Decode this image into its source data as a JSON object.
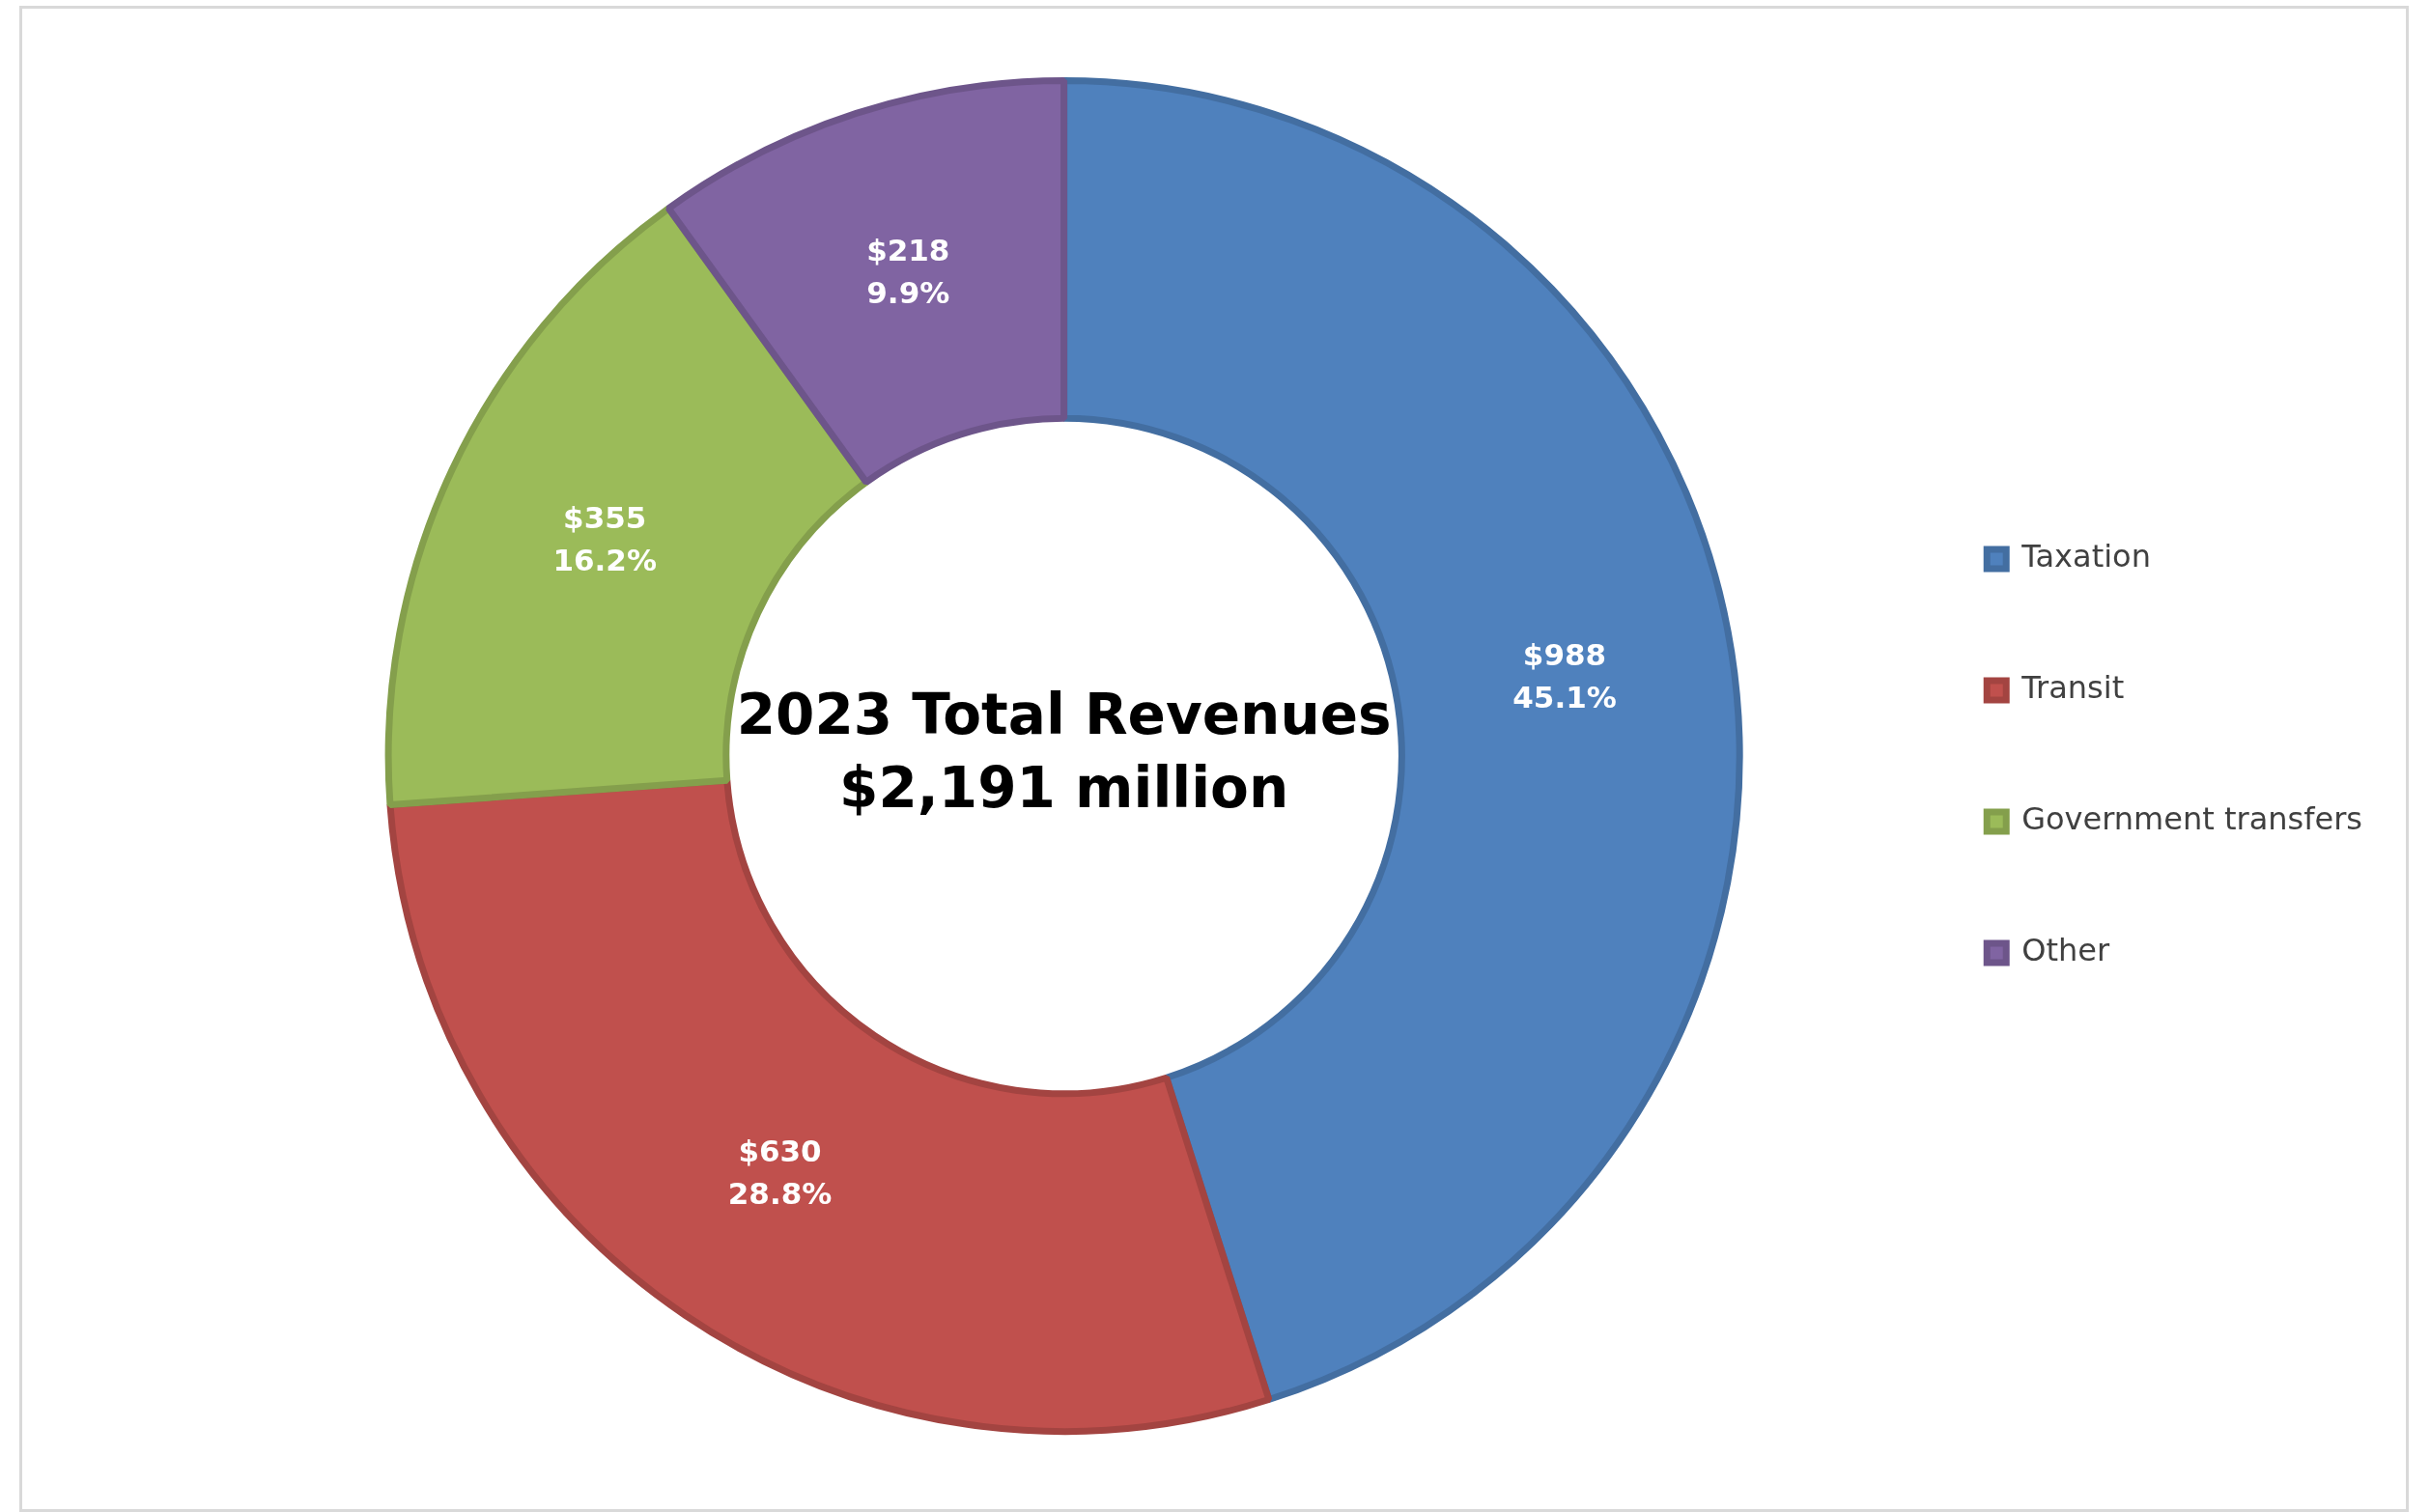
{
  "chart_data": {
    "type": "donut",
    "title": "2023 Total Revenues",
    "subtitle": "$2,191 million",
    "categories": [
      "Taxation",
      "Transit",
      "Government transfers",
      "Other"
    ],
    "values": [
      988,
      630,
      355,
      218
    ],
    "colors": [
      "#4f81bd",
      "#c0504d",
      "#9bbb59",
      "#8064a2"
    ],
    "value_labels": [
      "$988\n45.1%",
      "$630\n28.8%",
      "$355\n16.2%",
      "$218\n9.9%"
    ],
    "legend": "right"
  }
}
